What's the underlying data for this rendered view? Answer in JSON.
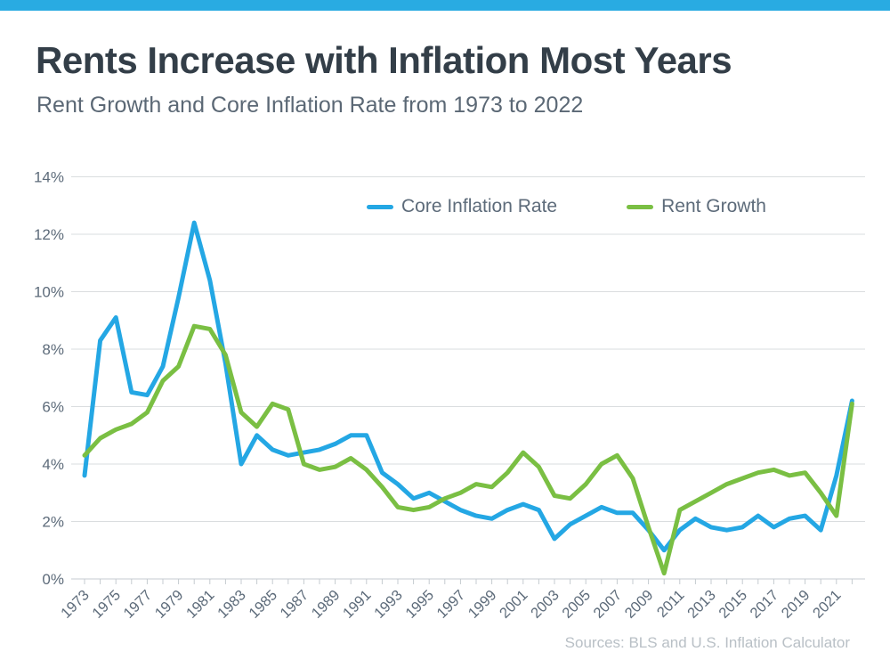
{
  "header": {
    "title": "Rents Increase with Inflation Most Years",
    "subtitle": "Rent Growth and Core Inflation Rate from 1973 to 2022"
  },
  "footer": {
    "source": "Sources: BLS and U.S. Inflation Calculator"
  },
  "colors": {
    "top_bar": "#29abe2",
    "core_inflation_line": "#24a7e4",
    "rent_growth_line": "#7abf43",
    "title_text": "#333e48",
    "subtitle_text": "#5b6875",
    "axis_text": "#5d6b7a",
    "legend_text": "#5d6b7a",
    "gridline": "#dadddf",
    "axis_line": "#c5cbd0",
    "source_text": "#b9c0c6"
  },
  "chart_data": {
    "type": "line",
    "title": "Rent Growth and Core Inflation Rate from 1973 to 2022",
    "xlabel": "",
    "ylabel": "",
    "ylim": [
      0,
      14
    ],
    "ytick_values": [
      0,
      2,
      4,
      6,
      8,
      10,
      12,
      14
    ],
    "ytick_labels": [
      "0%",
      "2%",
      "4%",
      "6%",
      "8%",
      "10%",
      "12%",
      "14%"
    ],
    "grid": "horizontal",
    "legend_position": "top-inside",
    "x": [
      1973,
      1974,
      1975,
      1976,
      1977,
      1978,
      1979,
      1980,
      1981,
      1982,
      1983,
      1984,
      1985,
      1986,
      1987,
      1988,
      1989,
      1990,
      1991,
      1992,
      1993,
      1994,
      1995,
      1996,
      1997,
      1998,
      1999,
      2000,
      2001,
      2002,
      2003,
      2004,
      2005,
      2006,
      2007,
      2008,
      2009,
      2010,
      2011,
      2012,
      2013,
      2014,
      2015,
      2016,
      2017,
      2018,
      2019,
      2020,
      2021,
      2022
    ],
    "x_labeled_ticks": [
      "1973",
      "1975",
      "1977",
      "1979",
      "1981",
      "1983",
      "1985",
      "1987",
      "1989",
      "1991",
      "1993",
      "1995",
      "1997",
      "1999",
      "2001",
      "2003",
      "2005",
      "2007",
      "2009",
      "2011",
      "2013",
      "2015",
      "2017",
      "2019",
      "2021"
    ],
    "series": [
      {
        "name": "Core Inflation Rate",
        "color": "#24a7e4",
        "values": [
          3.6,
          8.3,
          9.1,
          6.5,
          6.4,
          7.4,
          9.8,
          12.4,
          10.4,
          7.5,
          4.0,
          5.0,
          4.5,
          4.3,
          4.4,
          4.5,
          4.7,
          5.0,
          5.0,
          3.7,
          3.3,
          2.8,
          3.0,
          2.7,
          2.4,
          2.2,
          2.1,
          2.4,
          2.6,
          2.4,
          1.4,
          1.9,
          2.2,
          2.5,
          2.3,
          2.3,
          1.7,
          1.0,
          1.7,
          2.1,
          1.8,
          1.7,
          1.8,
          2.2,
          1.8,
          2.1,
          2.2,
          1.7,
          3.6,
          6.2
        ]
      },
      {
        "name": "Rent Growth",
        "color": "#7abf43",
        "values": [
          4.3,
          4.9,
          5.2,
          5.4,
          5.8,
          6.9,
          7.4,
          8.8,
          8.7,
          7.8,
          5.8,
          5.3,
          6.1,
          5.9,
          4.0,
          3.8,
          3.9,
          4.2,
          3.8,
          3.2,
          2.5,
          2.4,
          2.5,
          2.8,
          3.0,
          3.3,
          3.2,
          3.7,
          4.4,
          3.9,
          2.9,
          2.8,
          3.3,
          4.0,
          4.3,
          3.5,
          1.8,
          0.2,
          2.4,
          2.7,
          3.0,
          3.3,
          3.5,
          3.7,
          3.8,
          3.6,
          3.7,
          3.0,
          2.2,
          6.1
        ]
      }
    ]
  }
}
